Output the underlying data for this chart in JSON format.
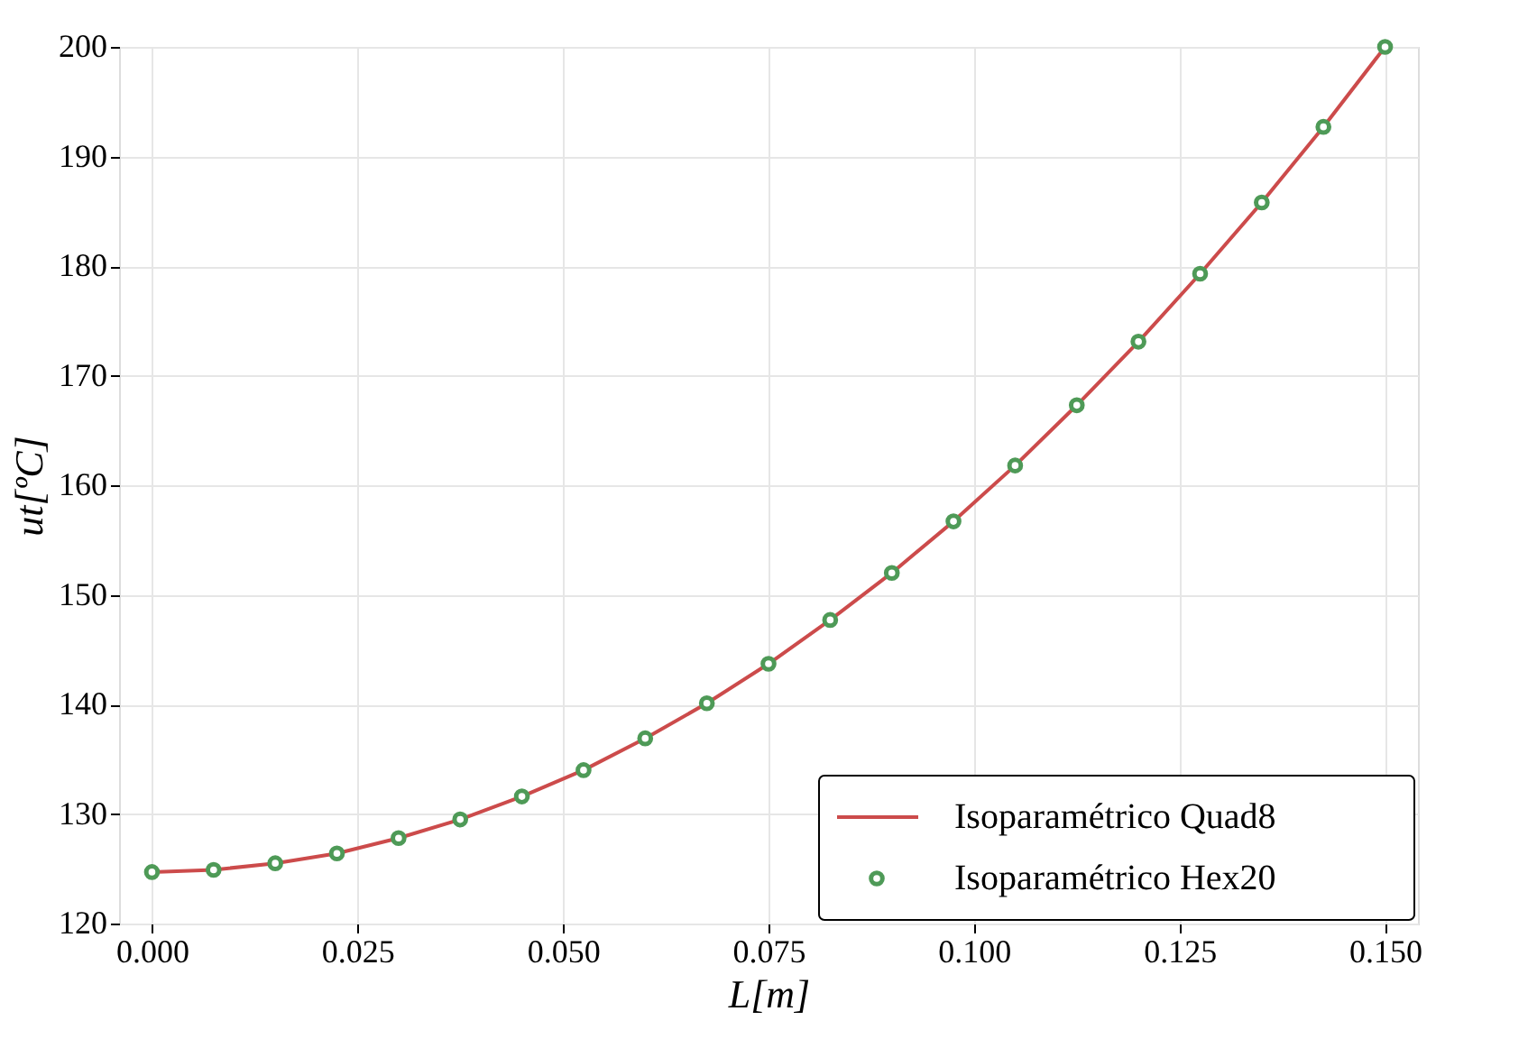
{
  "chart_data": {
    "type": "line",
    "xlabel": "L[m]",
    "ylabel": "ut[ºC]",
    "x": [
      0,
      0.0075,
      0.015,
      0.0225,
      0.03,
      0.0375,
      0.045,
      0.0525,
      0.06,
      0.0675,
      0.075,
      0.0825,
      0.09,
      0.0975,
      0.105,
      0.1125,
      0.12,
      0.1275,
      0.135,
      0.1425,
      0.15
    ],
    "series": [
      {
        "name": "Isoparamétrico Quad8",
        "color": "#cc4b4b",
        "values": [
          124.7,
          124.9,
          125.5,
          126.4,
          127.8,
          129.5,
          131.6,
          134.0,
          136.9,
          140.1,
          143.7,
          147.7,
          152.0,
          156.7,
          161.8,
          167.3,
          173.1,
          179.3,
          185.8,
          192.7,
          200.0
        ]
      },
      {
        "name": "Isoparamétrico Hex20",
        "color": "#4e9a57",
        "type": "scatter",
        "marker": "circle",
        "values": [
          124.7,
          124.9,
          125.5,
          126.4,
          127.8,
          129.5,
          131.6,
          134.0,
          136.9,
          140.1,
          143.7,
          147.7,
          152.0,
          156.7,
          161.8,
          167.3,
          173.1,
          179.3,
          185.8,
          192.7,
          200.0
        ]
      }
    ],
    "xlim": [
      -0.004,
      0.154
    ],
    "xticks": [
      {
        "value": 0,
        "label": "0.000"
      },
      {
        "value": 0.025,
        "label": "0.025"
      },
      {
        "value": 0.05,
        "label": "0.050"
      },
      {
        "value": 0.075,
        "label": "0.075"
      },
      {
        "value": 0.1,
        "label": "0.100"
      },
      {
        "value": 0.125,
        "label": "0.125"
      },
      {
        "value": 0.15,
        "label": "0.150"
      }
    ],
    "ylim": [
      120,
      200
    ],
    "yticks": [
      120,
      130,
      140,
      150,
      160,
      170,
      180,
      190,
      200
    ],
    "grid": true,
    "legend": "bottom right"
  }
}
